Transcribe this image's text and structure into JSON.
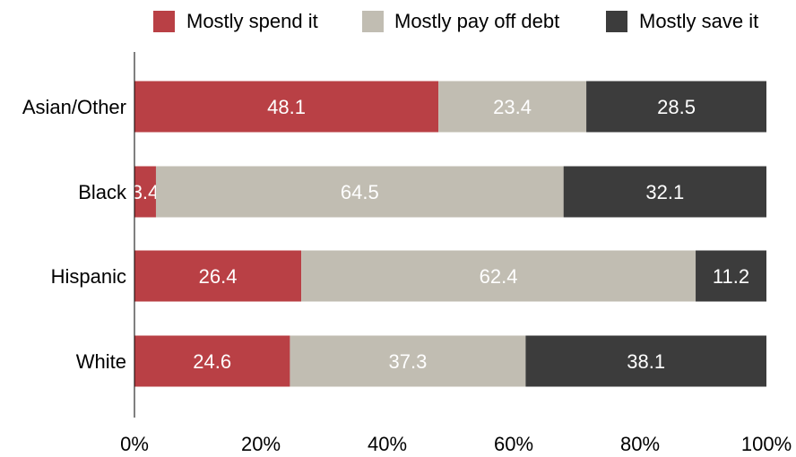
{
  "chart_data": {
    "type": "bar",
    "orientation": "horizontal",
    "stacked": true,
    "categories": [
      "Asian/Other",
      "Black",
      "Hispanic",
      "White"
    ],
    "series": [
      {
        "name": "Mostly spend it",
        "color": "#b94045",
        "values": [
          48.1,
          3.4,
          26.4,
          24.6
        ]
      },
      {
        "name": "Mostly pay off debt",
        "color": "#c1bdb2",
        "values": [
          23.4,
          64.5,
          62.4,
          37.3
        ]
      },
      {
        "name": "Mostly save it",
        "color": "#3c3c3c",
        "values": [
          28.5,
          32.1,
          11.2,
          38.1
        ]
      }
    ],
    "data_labels": [
      [
        "48.1",
        "3.4",
        "26.4",
        "24.6"
      ],
      [
        "23.4",
        "64.5",
        "62.4",
        "37.3"
      ],
      [
        "28.5",
        "32.1",
        "11.2",
        "38.1"
      ]
    ],
    "xlim": [
      0,
      100
    ],
    "x_ticks": [
      "0%",
      "20%",
      "40%",
      "60%",
      "80%",
      "100%"
    ],
    "legend_position": "top",
    "grid": false
  }
}
